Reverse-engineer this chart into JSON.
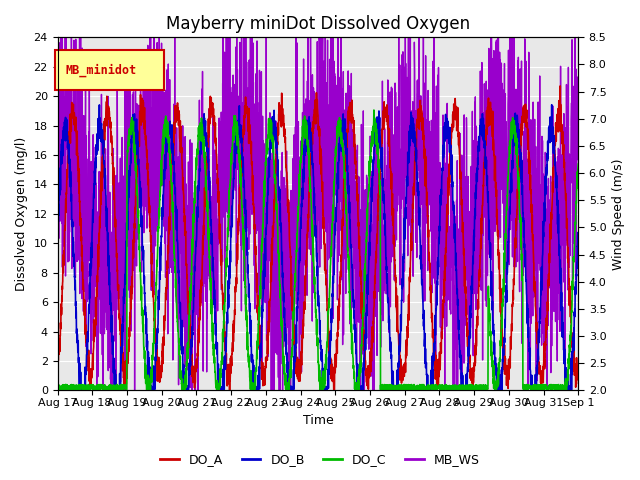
{
  "title": "Mayberry miniDot Dissolved Oxygen",
  "xlabel": "Time",
  "ylabel_left": "Dissolved Oxygen (mg/l)",
  "ylabel_right": "Wind Speed (m/s)",
  "ylim_left": [
    0,
    24
  ],
  "ylim_right": [
    2.0,
    8.5
  ],
  "yticks_left": [
    0,
    2,
    4,
    6,
    8,
    10,
    12,
    14,
    16,
    18,
    20,
    22,
    24
  ],
  "yticks_right": [
    2.0,
    2.5,
    3.0,
    3.5,
    4.0,
    4.5,
    5.0,
    5.5,
    6.0,
    6.5,
    7.0,
    7.5,
    8.0,
    8.5
  ],
  "xtick_labels": [
    "Aug 17",
    "Aug 18",
    "Aug 19",
    "Aug 20",
    "Aug 21",
    "Aug 22",
    "Aug 23",
    "Aug 24",
    "Aug 25",
    "Aug 26",
    "Aug 27",
    "Aug 28",
    "Aug 29",
    "Aug 30",
    "Aug 31",
    "Sep 1"
  ],
  "colors": {
    "DO_A": "#cc0000",
    "DO_B": "#0000cc",
    "DO_C": "#00bb00",
    "MB_WS": "#9900cc"
  },
  "line_widths": {
    "DO_A": 1.2,
    "DO_B": 1.2,
    "DO_C": 1.2,
    "MB_WS": 1.0
  },
  "legend_label": "MB_minidot",
  "legend_box_facecolor": "#ffff99",
  "legend_box_edgecolor": "#cc0000",
  "bg_color": "#e8e8e8",
  "title_fontsize": 12,
  "axis_fontsize": 9,
  "tick_fontsize": 8,
  "ws_min": 2.0,
  "ws_max": 8.5,
  "do_min": 0,
  "do_max": 24
}
